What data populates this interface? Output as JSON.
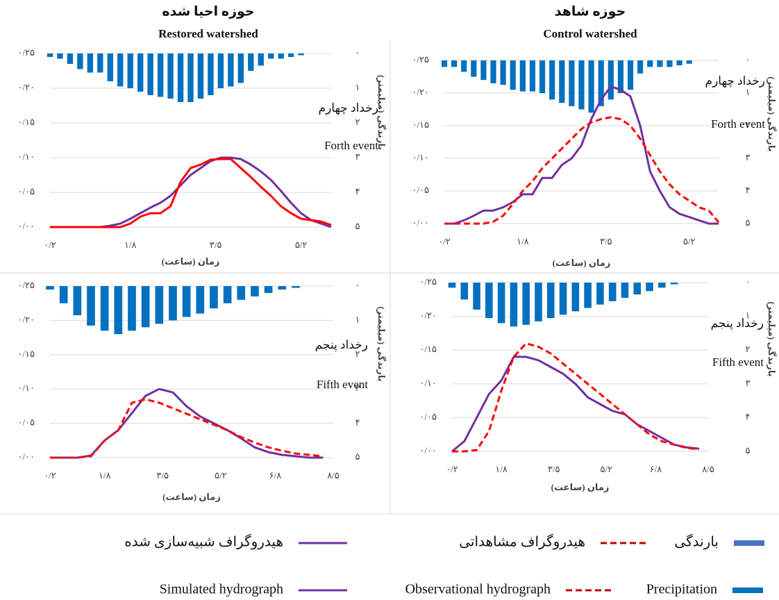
{
  "chart_data": [
    {
      "type": "combo",
      "title": "حوزه احیا شده",
      "subtitle": "Restored watershed",
      "x_label": "زمان (ساعت)",
      "y2_label": "بارندگی (میلیمتر)",
      "annotations": [
        "رخداد چهارم",
        "Forth event"
      ],
      "x": [
        0.2,
        0.4,
        0.6,
        0.8,
        1.0,
        1.2,
        1.4,
        1.6,
        1.8,
        2.0,
        2.2,
        2.4,
        2.6,
        2.8,
        3.0,
        3.2,
        3.4,
        3.6,
        3.8,
        4.0,
        4.2,
        4.4,
        4.6,
        4.8,
        5.0,
        5.2,
        5.4,
        5.6,
        5.8
      ],
      "xlim": [
        0.2,
        5.8
      ],
      "xticks": [
        {
          "value": 0.2,
          "label": "۰/۲"
        },
        {
          "value": 1.8,
          "label": "۱/۸"
        },
        {
          "value": 3.5,
          "label": "۳/۵"
        },
        {
          "value": 5.2,
          "label": "۵/۲"
        }
      ],
      "ylim": [
        0,
        0.25
      ],
      "yticks": [
        {
          "value": 0,
          "label": "۰/۰۰"
        },
        {
          "value": 0.05,
          "label": "۰/۰۵"
        },
        {
          "value": 0.1,
          "label": "۰/۱۰"
        },
        {
          "value": 0.15,
          "label": "۰/۱۵"
        },
        {
          "value": 0.2,
          "label": "۰/۲۰"
        },
        {
          "value": 0.25,
          "label": "۰/۲۵"
        }
      ],
      "y2lim": [
        5,
        0
      ],
      "y2ticks": [
        {
          "value": 0,
          "label": "۰"
        },
        {
          "value": 1,
          "label": "۱"
        },
        {
          "value": 2,
          "label": "۲"
        },
        {
          "value": 3,
          "label": "۳"
        },
        {
          "value": 4,
          "label": "۴"
        },
        {
          "value": 5,
          "label": "۵"
        }
      ],
      "grid": true,
      "series": [
        {
          "type": "bar",
          "axis": "y2",
          "color": "#0070c0",
          "values": [
            0.1,
            0.15,
            0.3,
            0.45,
            0.55,
            0.55,
            0.8,
            0.95,
            1.0,
            1.1,
            1.2,
            1.25,
            1.3,
            1.4,
            1.4,
            1.3,
            1.2,
            1.0,
            0.95,
            0.85,
            0.5,
            0.35,
            0.15,
            0.15,
            0.1,
            0.05,
            0,
            0,
            0
          ]
        },
        {
          "type": "line",
          "color": "#7030a0",
          "dash": false,
          "values": [
            0,
            0,
            0,
            0,
            0,
            0,
            0.002,
            0.005,
            0.012,
            0.02,
            0.028,
            0.035,
            0.045,
            0.06,
            0.075,
            0.085,
            0.095,
            0.1,
            0.1,
            0.098,
            0.09,
            0.08,
            0.068,
            0.052,
            0.035,
            0.02,
            0.01,
            0.005,
            0
          ]
        },
        {
          "type": "line",
          "color": "#ff0000",
          "dash": false,
          "values": [
            0,
            0,
            0,
            0,
            0,
            0,
            0,
            0,
            0.005,
            0.015,
            0.02,
            0.02,
            0.03,
            0.065,
            0.085,
            0.09,
            0.097,
            0.098,
            0.098,
            0.085,
            0.072,
            0.058,
            0.045,
            0.03,
            0.02,
            0.012,
            0.01,
            0.008,
            0.003
          ]
        }
      ]
    },
    {
      "type": "combo",
      "title": "حوزه شاهد",
      "subtitle": "Control watershed",
      "x_label": "زمان (ساعت)",
      "y2_label": "بارندگی (میلیمتر)",
      "annotations": [
        "رخداد چهارم",
        "Forth event"
      ],
      "x": [
        0.2,
        0.4,
        0.6,
        0.8,
        1.0,
        1.2,
        1.4,
        1.6,
        1.8,
        2.0,
        2.2,
        2.4,
        2.6,
        2.8,
        3.0,
        3.2,
        3.4,
        3.6,
        3.8,
        4.0,
        4.2,
        4.4,
        4.6,
        4.8,
        5.0,
        5.2,
        5.4,
        5.6,
        5.8
      ],
      "xlim": [
        0.2,
        5.8
      ],
      "xticks": [
        {
          "value": 0.2,
          "label": "۰/۲"
        },
        {
          "value": 1.8,
          "label": "۱/۸"
        },
        {
          "value": 3.5,
          "label": "۳/۵"
        },
        {
          "value": 5.2,
          "label": "۵/۲"
        }
      ],
      "ylim": [
        0,
        0.25
      ],
      "yticks": [
        {
          "value": 0,
          "label": "۰/۰۰"
        },
        {
          "value": 0.05,
          "label": "۰/۰۵"
        },
        {
          "value": 0.1,
          "label": "۰/۱۰"
        },
        {
          "value": 0.15,
          "label": "۰/۱۵"
        },
        {
          "value": 0.2,
          "label": "۰/۲۰"
        },
        {
          "value": 0.25,
          "label": "۰/۲۵"
        }
      ],
      "y2lim": [
        5,
        0
      ],
      "y2ticks": [
        {
          "value": 0,
          "label": "۰"
        },
        {
          "value": 1,
          "label": "۱"
        },
        {
          "value": 2,
          "label": "۲"
        },
        {
          "value": 3,
          "label": "۳"
        },
        {
          "value": 4,
          "label": "۴"
        },
        {
          "value": 5,
          "label": "۵"
        }
      ],
      "grid": true,
      "series": [
        {
          "type": "bar",
          "axis": "y2",
          "color": "#0070c0",
          "values": [
            0.2,
            0.2,
            0.35,
            0.5,
            0.6,
            0.7,
            0.75,
            0.9,
            0.95,
            0.95,
            1.0,
            1.2,
            1.3,
            1.4,
            1.5,
            1.6,
            1.4,
            1.2,
            1.0,
            0.9,
            0.4,
            0.2,
            0.2,
            0.2,
            0.15,
            0.1,
            0,
            0,
            0
          ]
        },
        {
          "type": "line",
          "color": "#7030a0",
          "dash": false,
          "values": [
            0,
            0,
            0.005,
            0.012,
            0.02,
            0.02,
            0.025,
            0.033,
            0.045,
            0.045,
            0.07,
            0.07,
            0.09,
            0.1,
            0.12,
            0.16,
            0.19,
            0.21,
            0.205,
            0.195,
            0.15,
            0.08,
            0.05,
            0.025,
            0.015,
            0.01,
            0.005,
            0,
            0
          ]
        },
        {
          "type": "line",
          "color": "#ff0000",
          "dash": true,
          "values": [
            0,
            0,
            0,
            0,
            0,
            0.003,
            0.012,
            0.03,
            0.05,
            0.065,
            0.085,
            0.1,
            0.115,
            0.13,
            0.145,
            0.155,
            0.16,
            0.163,
            0.16,
            0.15,
            0.13,
            0.105,
            0.08,
            0.06,
            0.045,
            0.035,
            0.025,
            0.02,
            0.002
          ]
        }
      ]
    },
    {
      "type": "combo",
      "x_label": "زمان (ساعت)",
      "y2_label": "بارندگی (میلیمتر)",
      "annotations": [
        "رخداد پنجم",
        "Fifth event"
      ],
      "x": [
        0.2,
        0.6,
        1.0,
        1.4,
        1.8,
        2.2,
        2.6,
        3.0,
        3.4,
        3.8,
        4.2,
        4.6,
        5.0,
        5.4,
        5.8,
        6.2,
        6.6,
        7.0,
        7.4,
        7.8,
        8.2
      ],
      "xlim": [
        0.2,
        8.5
      ],
      "xticks": [
        {
          "value": 0.2,
          "label": "۰/۲"
        },
        {
          "value": 1.8,
          "label": "۱/۸"
        },
        {
          "value": 3.5,
          "label": "۳/۵"
        },
        {
          "value": 5.2,
          "label": "۵/۲"
        },
        {
          "value": 6.8,
          "label": "۶/۸"
        },
        {
          "value": 8.5,
          "label": "۸/۵"
        }
      ],
      "ylim": [
        0,
        0.25
      ],
      "yticks": [
        {
          "value": 0,
          "label": "۰/۰۰"
        },
        {
          "value": 0.05,
          "label": "۰/۰۵"
        },
        {
          "value": 0.1,
          "label": "۰/۱۰"
        },
        {
          "value": 0.15,
          "label": "۰/۱۵"
        },
        {
          "value": 0.2,
          "label": "۰/۲۰"
        },
        {
          "value": 0.25,
          "label": "۰/۲۵"
        }
      ],
      "y2lim": [
        5,
        0
      ],
      "y2ticks": [
        {
          "value": 0,
          "label": "۰"
        },
        {
          "value": 1,
          "label": "۱"
        },
        {
          "value": 2,
          "label": "۲"
        },
        {
          "value": 3,
          "label": "۳"
        },
        {
          "value": 4,
          "label": "۴"
        },
        {
          "value": 5,
          "label": "۵"
        }
      ],
      "grid": true,
      "series": [
        {
          "type": "bar",
          "axis": "y2",
          "color": "#0070c0",
          "values": [
            0.1,
            0.5,
            0.85,
            1.15,
            1.3,
            1.4,
            1.3,
            1.2,
            1.1,
            1.0,
            0.9,
            0.8,
            0.65,
            0.5,
            0.4,
            0.3,
            0.2,
            0.1,
            0.05,
            0,
            0
          ]
        },
        {
          "type": "line",
          "color": "#7030a0",
          "dash": false,
          "values": [
            0,
            0,
            0,
            0.003,
            0.025,
            0.04,
            0.065,
            0.09,
            0.1,
            0.095,
            0.075,
            0.06,
            0.05,
            0.04,
            0.028,
            0.015,
            0.008,
            0.004,
            0.002,
            0,
            0
          ]
        },
        {
          "type": "line",
          "color": "#ff0000",
          "dash": true,
          "values": [
            0,
            0,
            0,
            0.002,
            0.025,
            0.04,
            0.08,
            0.085,
            0.08,
            0.072,
            0.064,
            0.056,
            0.048,
            0.04,
            0.03,
            0.022,
            0.015,
            0.01,
            0.006,
            0.004,
            0.002
          ]
        }
      ]
    },
    {
      "type": "combo",
      "x_label": "زمان (ساعت)",
      "y2_label": "بارندگی (میلیمتر)",
      "annotations": [
        "رخداد پنجم",
        "Fifth event"
      ],
      "x": [
        0.2,
        0.6,
        1.0,
        1.4,
        1.8,
        2.2,
        2.6,
        3.0,
        3.4,
        3.8,
        4.2,
        4.6,
        5.0,
        5.4,
        5.8,
        6.2,
        6.6,
        7.0,
        7.4,
        7.8,
        8.2
      ],
      "xlim": [
        0.2,
        8.5
      ],
      "xticks": [
        {
          "value": 0.2,
          "label": "۰/۲"
        },
        {
          "value": 1.8,
          "label": "۱/۸"
        },
        {
          "value": 3.5,
          "label": "۳/۵"
        },
        {
          "value": 5.2,
          "label": "۵/۲"
        },
        {
          "value": 6.8,
          "label": "۶/۸"
        },
        {
          "value": 8.5,
          "label": "۸/۵"
        }
      ],
      "ylim": [
        0,
        0.25
      ],
      "yticks": [
        {
          "value": 0,
          "label": "۰/۰۰"
        },
        {
          "value": 0.05,
          "label": "۰/۰۵"
        },
        {
          "value": 0.1,
          "label": "۰/۱۰"
        },
        {
          "value": 0.15,
          "label": "۰/۱۵"
        },
        {
          "value": 0.2,
          "label": "۰/۲۰"
        },
        {
          "value": 0.25,
          "label": "۰/۲۵"
        }
      ],
      "y2lim": [
        5,
        0
      ],
      "y2ticks": [
        {
          "value": 0,
          "label": "۰"
        },
        {
          "value": 1,
          "label": "۱"
        },
        {
          "value": 2,
          "label": "۲"
        },
        {
          "value": 3,
          "label": "۳"
        },
        {
          "value": 4,
          "label": "۴"
        },
        {
          "value": 5,
          "label": "۵"
        }
      ],
      "grid": true,
      "series": [
        {
          "type": "bar",
          "axis": "y2",
          "color": "#0070c0",
          "values": [
            0.15,
            0.5,
            0.8,
            1.05,
            1.2,
            1.3,
            1.25,
            1.15,
            1.05,
            0.95,
            0.85,
            0.75,
            0.65,
            0.55,
            0.45,
            0.35,
            0.25,
            0.15,
            0.05,
            0,
            0
          ]
        },
        {
          "type": "line",
          "color": "#7030a0",
          "dash": false,
          "values": [
            0,
            0.015,
            0.05,
            0.085,
            0.105,
            0.14,
            0.14,
            0.135,
            0.125,
            0.115,
            0.1,
            0.08,
            0.07,
            0.06,
            0.055,
            0.04,
            0.03,
            0.02,
            0.01,
            0.006,
            0.004
          ]
        },
        {
          "type": "line",
          "color": "#ff0000",
          "dash": true,
          "values": [
            0,
            0,
            0.002,
            0.03,
            0.09,
            0.14,
            0.16,
            0.155,
            0.145,
            0.13,
            0.115,
            0.1,
            0.085,
            0.07,
            0.055,
            0.04,
            0.025,
            0.015,
            0.01,
            0.005,
            0.003
          ]
        }
      ]
    }
  ],
  "legend": [
    [
      {
        "label": "بارندگی",
        "color": "#4472c4",
        "style": "bar"
      },
      {
        "label": "هیدروگراف مشاهداتی",
        "color": "#c00000",
        "style": "dash"
      },
      {
        "label": "هیدروگراف شبیه‌سازی شده",
        "color": "#7030a0",
        "style": "line"
      }
    ],
    [
      {
        "label": "Precipitation",
        "color": "#0070c0",
        "style": "bar"
      },
      {
        "label": "Observational hydrograph",
        "color": "#c00000",
        "style": "dash"
      },
      {
        "label": "Simulated hydrograph",
        "color": "#7030a0",
        "style": "line"
      }
    ]
  ]
}
